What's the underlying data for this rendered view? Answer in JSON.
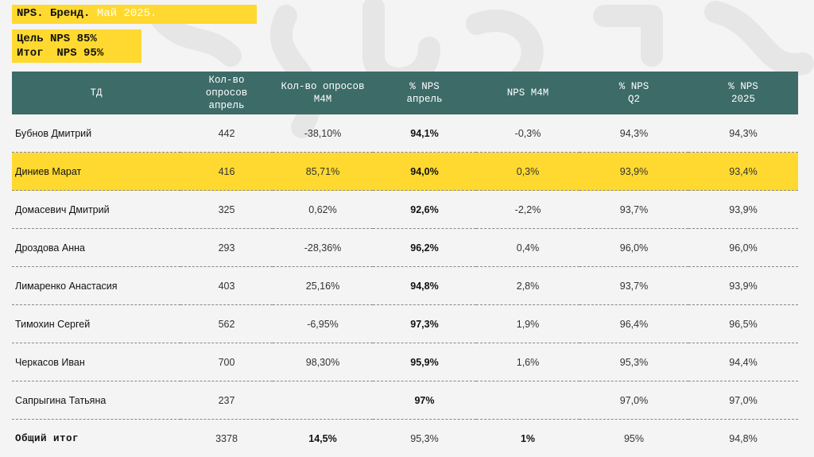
{
  "title": {
    "prefix": "NPS. Бренд.",
    "month": "Май 2025."
  },
  "goal": {
    "line1": "Цель NPS 85%",
    "line2": "Итог  NPS 95%"
  },
  "table": {
    "headers": [
      [
        "ТД"
      ],
      [
        "Кол-во",
        "опросов",
        "апрель"
      ],
      [
        "Кол-во опросов",
        "М4М"
      ],
      [
        "% NPS",
        "апрель"
      ],
      [
        "NPS М4М"
      ],
      [
        "% NPS",
        "Q2"
      ],
      [
        "% NPS",
        "2025"
      ]
    ],
    "rows": [
      {
        "name": "Бубнов Дмитрий",
        "count": "442",
        "m4m_count": "-38,10%",
        "nps_april": "94,1%",
        "nps_m4m": "-0,3%",
        "nps_q2": "94,3%",
        "nps_2025": "94,3%"
      },
      {
        "name": "Диниев Марат",
        "count": "416",
        "m4m_count": "85,71%",
        "nps_april": "94,0%",
        "nps_m4m": "0,3%",
        "nps_q2": "93,9%",
        "nps_2025": "93,4%"
      },
      {
        "name": "Домасевич Дмитрий",
        "count": "325",
        "m4m_count": "0,62%",
        "nps_april": "92,6%",
        "nps_m4m": "-2,2%",
        "nps_q2": "93,7%",
        "nps_2025": "93,9%"
      },
      {
        "name": "Дроздова Анна",
        "count": "293",
        "m4m_count": "-28,36%",
        "nps_april": "96,2%",
        "nps_m4m": "0,4%",
        "nps_q2": "96,0%",
        "nps_2025": "96,0%"
      },
      {
        "name": "Лимаренко Анастасия",
        "count": "403",
        "m4m_count": "25,16%",
        "nps_april": "94,8%",
        "nps_m4m": "2,8%",
        "nps_q2": "93,7%",
        "nps_2025": "93,9%"
      },
      {
        "name": "Тимохин Сергей",
        "count": "562",
        "m4m_count": "-6,95%",
        "nps_april": "97,3%",
        "nps_m4m": "1,9%",
        "nps_q2": "96,4%",
        "nps_2025": "96,5%"
      },
      {
        "name": "Черкасов Иван",
        "count": "700",
        "m4m_count": "98,30%",
        "nps_april": "95,9%",
        "nps_m4m": "1,6%",
        "nps_q2": "95,3%",
        "nps_2025": "94,4%"
      },
      {
        "name": "Сапрыгина Татьяна",
        "count": "237",
        "m4m_count": "",
        "nps_april": "97%",
        "nps_m4m": "",
        "nps_q2": "97,0%",
        "nps_2025": "97,0%"
      },
      {
        "name": "Общий итог",
        "count": "3378",
        "m4m_count": "14,5%",
        "nps_april": "95,3%",
        "nps_m4m": "1%",
        "nps_q2": "95%",
        "nps_2025": "94,8%"
      }
    ]
  },
  "colors": {
    "accent_yellow": "#ffd92f",
    "header_teal": "#3c6b68",
    "background": "#f4f4f4"
  }
}
